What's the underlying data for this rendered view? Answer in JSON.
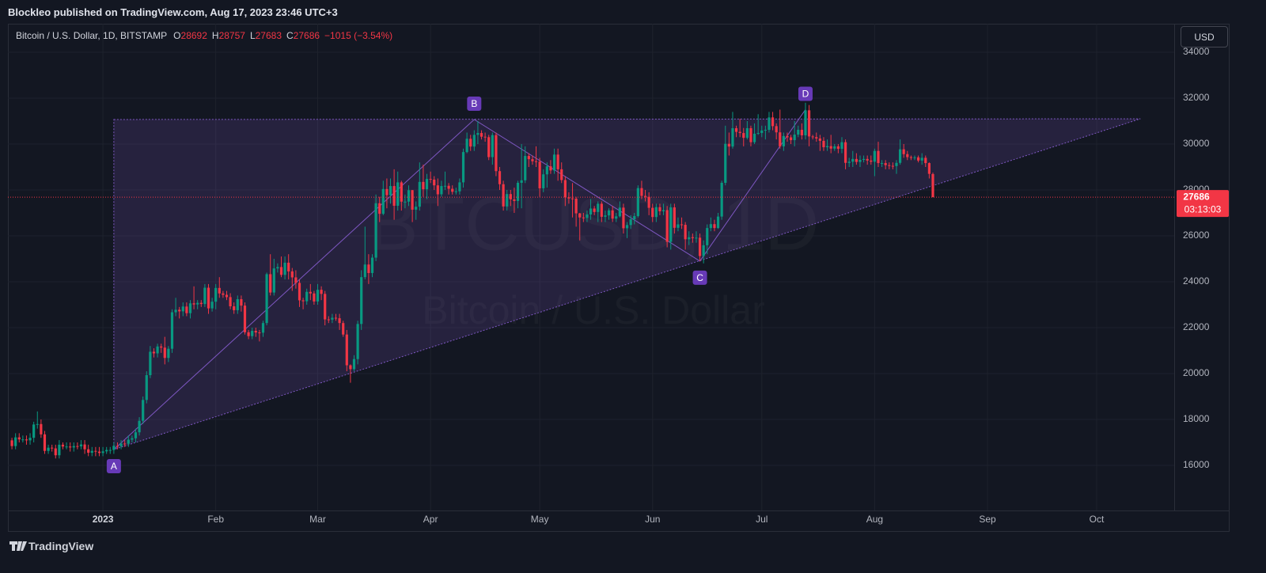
{
  "header": {
    "publisher": "Blockleo published on TradingView.com, Aug 17, 2023 23:46 UTC+3"
  },
  "toolbar": {
    "currency": "USD"
  },
  "footer": {
    "brand": "TradingView"
  },
  "chart_data": {
    "type": "candlestick",
    "title": "Bitcoin / U.S. Dollar, 1D, BITSTAMP",
    "ohlc_prefixes": [
      "O",
      "H",
      "L",
      "C"
    ],
    "change": "−1015 (−3.54%)",
    "countdown": "03:13:03",
    "watermark": [
      "BTCUSD, 1D",
      "Bitcoin / U.S. Dollar"
    ],
    "up_color": "#089981",
    "down_color": "#f23645",
    "pattern_color": "#7e57c2",
    "grid": true,
    "xlim": [
      -26.1,
      294.3
    ],
    "xticks": [
      {
        "value": 0,
        "label": "2023"
      },
      {
        "value": 31,
        "label": "Feb"
      },
      {
        "value": 59,
        "label": "Mar"
      },
      {
        "value": 90,
        "label": "Apr"
      },
      {
        "value": 120,
        "label": "May"
      },
      {
        "value": 151,
        "label": "Jun"
      },
      {
        "value": 181,
        "label": "Jul"
      },
      {
        "value": 212,
        "label": "Aug"
      },
      {
        "value": 243,
        "label": "Sep"
      },
      {
        "value": 273,
        "label": "Oct"
      }
    ],
    "ylim": [
      14034,
      35241
    ],
    "yticks": [
      16000,
      18000,
      20000,
      22000,
      24000,
      26000,
      28000,
      30000,
      32000,
      34000
    ],
    "x": [
      -25,
      -24,
      -23,
      -22,
      -21,
      -20,
      -19,
      -18,
      -17,
      -16,
      -15,
      -14,
      -13,
      -12,
      -11,
      -10,
      -9,
      -8,
      -7,
      -6,
      -5,
      -4,
      -3,
      -2,
      -1,
      0,
      1,
      2,
      3,
      4,
      5,
      6,
      7,
      8,
      9,
      10,
      11,
      12,
      13,
      14,
      15,
      16,
      17,
      18,
      19,
      20,
      21,
      22,
      23,
      24,
      25,
      26,
      27,
      28,
      29,
      30,
      31,
      32,
      33,
      34,
      35,
      36,
      37,
      38,
      39,
      40,
      41,
      42,
      43,
      44,
      45,
      46,
      47,
      48,
      49,
      50,
      51,
      52,
      53,
      54,
      55,
      56,
      57,
      58,
      59,
      60,
      61,
      62,
      63,
      64,
      65,
      66,
      67,
      68,
      69,
      70,
      71,
      72,
      73,
      74,
      75,
      76,
      77,
      78,
      79,
      80,
      81,
      82,
      83,
      84,
      85,
      86,
      87,
      88,
      89,
      90,
      91,
      92,
      93,
      94,
      95,
      96,
      97,
      98,
      99,
      100,
      101,
      102,
      103,
      104,
      105,
      106,
      107,
      108,
      109,
      110,
      111,
      112,
      113,
      114,
      115,
      116,
      117,
      118,
      119,
      120,
      121,
      122,
      123,
      124,
      125,
      126,
      127,
      128,
      129,
      130,
      131,
      132,
      133,
      134,
      135,
      136,
      137,
      138,
      139,
      140,
      141,
      142,
      143,
      144,
      145,
      146,
      147,
      148,
      149,
      150,
      151,
      152,
      153,
      154,
      155,
      156,
      157,
      158,
      159,
      160,
      161,
      162,
      163,
      164,
      165,
      166,
      167,
      168,
      169,
      170,
      171,
      172,
      173,
      174,
      175,
      176,
      177,
      178,
      179,
      180,
      181,
      182,
      183,
      184,
      185,
      186,
      187,
      188,
      189,
      190,
      191,
      192,
      193,
      194,
      195,
      196,
      197,
      198,
      199,
      200,
      201,
      202,
      203,
      204,
      205,
      206,
      207,
      208,
      209,
      210,
      211,
      212,
      213,
      214,
      215,
      216,
      217,
      218,
      219,
      220,
      221,
      222,
      223,
      224,
      225,
      226,
      227,
      228
    ],
    "open": [
      17090,
      16840,
      17220,
      17130,
      17130,
      17090,
      17200,
      17780,
      17800,
      17350,
      16630,
      16770,
      16740,
      16440,
      16900,
      16820,
      16820,
      16780,
      16840,
      16830,
      16910,
      16700,
      16550,
      16630,
      16600,
      16540,
      16610,
      16670,
      16670,
      16850,
      16830,
      16950,
      16940,
      17120,
      17180,
      17440,
      17940,
      18850,
      19930,
      20950,
      20880,
      21180,
      21130,
      20680,
      21080,
      22670,
      22780,
      22710,
      22920,
      22630,
      23060,
      23010,
      23080,
      23030,
      23740,
      22840,
      23130,
      23730,
      23490,
      23430,
      23330,
      22930,
      22760,
      23240,
      22960,
      21800,
      21630,
      21860,
      21790,
      21780,
      22200,
      24330,
      23530,
      24580,
      24640,
      24300,
      24830,
      24450,
      24190,
      23950,
      23190,
      23150,
      23560,
      23490,
      23140,
      23650,
      23470,
      22360,
      22350,
      22430,
      22410,
      22200,
      21700,
      20360,
      20190,
      20630,
      22160,
      24200,
      24750,
      24380,
      25050,
      27420,
      26960,
      28040,
      27770,
      28170,
      27310,
      28330,
      27490,
      27490,
      27990,
      27140,
      27270,
      28350,
      28030,
      28480,
      28450,
      28200,
      27810,
      28170,
      28180,
      28050,
      27920,
      27940,
      28330,
      29650,
      30230,
      29890,
      30400,
      30480,
      30320,
      30300,
      29430,
      30390,
      28820,
      28250,
      27280,
      27820,
      27590,
      27520,
      28310,
      28420,
      29480,
      29340,
      29250,
      29230,
      28070,
      28680,
      29030,
      28850,
      29540,
      28900,
      28430,
      27680,
      27630,
      27620,
      26980,
      26800,
      26780,
      26930,
      27190,
      27040,
      27400,
      26830,
      26890,
      27110,
      26750,
      26850,
      27230,
      26330,
      26470,
      26720,
      26860,
      28080,
      27740,
      27700,
      27220,
      26820,
      27250,
      27070,
      27120,
      25740,
      27240,
      26350,
      26500,
      26480,
      25850,
      25940,
      25900,
      25920,
      25120,
      25590,
      26340,
      26510,
      26340,
      26840,
      28310,
      30010,
      29890,
      30690,
      30530,
      30480,
      30270,
      30690,
      30080,
      30450,
      30480,
      30590,
      30620,
      31160,
      30780,
      30510,
      29900,
      30350,
      30290,
      30170,
      30410,
      30620,
      30380,
      31470,
      30330,
      30300,
      30240,
      30140,
      29860,
      29910,
      29800,
      29900,
      29790,
      30080,
      29180,
      29230,
      29350,
      29220,
      29310,
      29350,
      29280,
      29230,
      29700,
      29170,
      29170,
      29080,
      29050,
      29040,
      29180,
      29770,
      29560,
      29430,
      29400,
      29420,
      29280,
      29400,
      29170,
      28692
    ],
    "high": [
      17200,
      17400,
      17400,
      17300,
      17300,
      17400,
      17900,
      18350,
      18000,
      17500,
      16900,
      16900,
      16900,
      17100,
      17000,
      17000,
      17000,
      17000,
      17000,
      17100,
      17100,
      16900,
      16800,
      16800,
      16800,
      16800,
      16800,
      16800,
      17000,
      17000,
      17100,
      17100,
      17300,
      17300,
      17600,
      18100,
      19000,
      20100,
      21200,
      21100,
      21300,
      21300,
      21600,
      21200,
      22800,
      23300,
      22900,
      23100,
      23100,
      23200,
      23800,
      23200,
      23200,
      23900,
      23900,
      23300,
      23900,
      24200,
      23600,
      23600,
      23500,
      23100,
      23400,
      23400,
      23100,
      21900,
      22000,
      22000,
      21900,
      22300,
      24400,
      25200,
      25000,
      24800,
      25100,
      25100,
      25200,
      24600,
      24500,
      24100,
      23300,
      23700,
      23900,
      23600,
      23900,
      23800,
      23600,
      22500,
      22600,
      22600,
      22600,
      22300,
      21900,
      20400,
      20800,
      22300,
      24500,
      26400,
      25200,
      25200,
      27800,
      27700,
      28400,
      28500,
      28500,
      28900,
      28800,
      28400,
      27800,
      28200,
      28000,
      27500,
      29200,
      29100,
      28700,
      28800,
      28600,
      28500,
      28400,
      28800,
      28300,
      28200,
      28100,
      28500,
      29800,
      30500,
      30400,
      30600,
      31000,
      30600,
      30500,
      30400,
      30500,
      30500,
      29000,
      28400,
      28000,
      28000,
      28100,
      28400,
      30000,
      29900,
      29600,
      29500,
      29900,
      29400,
      28900,
      29200,
      29300,
      29800,
      29800,
      29200,
      28600,
      27900,
      28300,
      27700,
      27000,
      27000,
      27100,
      27600,
      27300,
      27500,
      27500,
      27100,
      27200,
      27300,
      27000,
      27500,
      27400,
      26600,
      26900,
      27000,
      28200,
      28400,
      28000,
      27900,
      27400,
      27400,
      27400,
      27400,
      27300,
      27400,
      27400,
      26800,
      26800,
      26600,
      26200,
      26100,
      26200,
      26100,
      25800,
      26500,
      26800,
      26700,
      27000,
      28400,
      30800,
      30500,
      31400,
      30800,
      31100,
      30700,
      31000,
      30800,
      30900,
      31300,
      30800,
      30800,
      31400,
      31400,
      30900,
      31500,
      30500,
      30500,
      30400,
      31000,
      30800,
      30900,
      31800,
      31700,
      30400,
      30500,
      30400,
      30300,
      30200,
      30400,
      30000,
      30000,
      30300,
      30200,
      29400,
      29700,
      29600,
      29500,
      29500,
      29500,
      29500,
      29800,
      30100,
      29300,
      29300,
      29200,
      29200,
      29300,
      30200,
      30000,
      29700,
      29500,
      29500,
      29500,
      29600,
      29500,
      29200,
      28757
    ],
    "low": [
      16700,
      16700,
      17000,
      17000,
      16900,
      16900,
      17000,
      17600,
      17200,
      16500,
      16500,
      16600,
      16300,
      16300,
      16700,
      16700,
      16600,
      16600,
      16700,
      16700,
      16500,
      16400,
      16400,
      16400,
      16400,
      16400,
      16500,
      16500,
      16500,
      16700,
      16700,
      16800,
      16800,
      17000,
      17000,
      17300,
      17800,
      18700,
      19800,
      20700,
      20700,
      20900,
      20400,
      20500,
      20900,
      22500,
      22400,
      22500,
      22500,
      22400,
      22800,
      22800,
      22900,
      22900,
      22600,
      22700,
      22800,
      23300,
      23300,
      23200,
      22800,
      22600,
      22600,
      22700,
      21700,
      21500,
      21500,
      21600,
      21400,
      21600,
      22100,
      23400,
      23400,
      24400,
      24200,
      24100,
      24100,
      23600,
      23700,
      22900,
      22800,
      23000,
      23200,
      23000,
      23000,
      23200,
      22100,
      22200,
      22200,
      22300,
      21900,
      21600,
      20100,
      19600,
      20100,
      20400,
      21900,
      24100,
      23900,
      24200,
      24900,
      26600,
      26900,
      27200,
      27400,
      26700,
      27100,
      27100,
      27200,
      27300,
      26600,
      26700,
      27100,
      27700,
      27600,
      28300,
      28000,
      27300,
      27700,
      28000,
      27800,
      27800,
      27800,
      27800,
      28100,
      29600,
      29700,
      29700,
      30000,
      30200,
      30100,
      29300,
      29100,
      28600,
      28000,
      27100,
      27100,
      27300,
      27000,
      27200,
      27200,
      28300,
      29000,
      29100,
      29000,
      27700,
      27900,
      28100,
      28700,
      28700,
      28400,
      28300,
      27300,
      27400,
      26800,
      26400,
      25800,
      26600,
      26600,
      26700,
      26900,
      26600,
      26600,
      26600,
      26700,
      26600,
      26600,
      26800,
      26100,
      25900,
      26300,
      26500,
      26800,
      27600,
      27500,
      26900,
      26600,
      26600,
      26900,
      26900,
      25500,
      25400,
      26100,
      26200,
      26300,
      25400,
      25600,
      25700,
      25700,
      24900,
      24800,
      25200,
      26200,
      26200,
      26300,
      26700,
      28200,
      29500,
      29800,
      30300,
      30300,
      29900,
      30200,
      29900,
      30000,
      30400,
      30300,
      30200,
      30500,
      30600,
      30200,
      29800,
      29700,
      30100,
      30000,
      29900,
      30300,
      30200,
      30200,
      29900,
      30200,
      30100,
      29700,
      29700,
      29700,
      29600,
      29700,
      29600,
      29600,
      28900,
      29000,
      29000,
      29100,
      29000,
      29200,
      29100,
      29100,
      28600,
      29000,
      29000,
      28900,
      28900,
      28900,
      28700,
      29100,
      29400,
      29300,
      29300,
      29300,
      29200,
      29100,
      29000,
      28500,
      27683
    ],
    "close": [
      16840,
      17220,
      17130,
      17130,
      17090,
      17200,
      17780,
      17800,
      17350,
      16630,
      16770,
      16740,
      16440,
      16900,
      16820,
      16820,
      16780,
      16840,
      16830,
      16910,
      16700,
      16550,
      16630,
      16600,
      16540,
      16610,
      16670,
      16670,
      16850,
      16830,
      16950,
      16940,
      17120,
      17180,
      17440,
      17940,
      18850,
      19930,
      20950,
      20880,
      21180,
      21130,
      20680,
      21080,
      22670,
      22780,
      22710,
      22920,
      22630,
      23060,
      23010,
      23080,
      23030,
      23740,
      22840,
      23130,
      23730,
      23490,
      23430,
      23330,
      22930,
      22760,
      23240,
      22960,
      21800,
      21630,
      21860,
      21790,
      21780,
      22200,
      24330,
      23530,
      24580,
      24640,
      24300,
      24830,
      24450,
      24190,
      23950,
      23190,
      23150,
      23560,
      23490,
      23140,
      23650,
      23470,
      22360,
      22350,
      22430,
      22410,
      22200,
      21700,
      20360,
      20190,
      20630,
      22160,
      24200,
      24750,
      24380,
      25050,
      27420,
      26960,
      28040,
      27770,
      28170,
      27310,
      28330,
      27490,
      27490,
      27990,
      27140,
      27270,
      28350,
      28030,
      28480,
      28450,
      28200,
      27810,
      28170,
      28180,
      28050,
      27920,
      27940,
      28330,
      29650,
      30230,
      29890,
      30400,
      30480,
      30320,
      30300,
      29430,
      30390,
      28820,
      28250,
      27280,
      27820,
      27590,
      27520,
      28310,
      28420,
      29480,
      29340,
      29250,
      29230,
      28070,
      28680,
      29030,
      28850,
      29540,
      28900,
      28430,
      27680,
      27630,
      27620,
      26980,
      26800,
      26780,
      26930,
      27190,
      27040,
      27400,
      26830,
      26890,
      27110,
      26750,
      26850,
      27230,
      26330,
      26470,
      26720,
      26860,
      28080,
      27740,
      27700,
      27220,
      26820,
      27250,
      27070,
      27120,
      25740,
      27240,
      26350,
      26500,
      26480,
      25850,
      25940,
      25900,
      25920,
      25120,
      25590,
      26340,
      26510,
      26340,
      26840,
      28310,
      30010,
      29890,
      30690,
      30530,
      30480,
      30270,
      30690,
      30080,
      30450,
      30480,
      30590,
      30620,
      31160,
      30780,
      30510,
      29900,
      30350,
      30290,
      30170,
      30410,
      30620,
      30380,
      31470,
      30330,
      30300,
      30240,
      30140,
      29860,
      29910,
      29800,
      29900,
      29790,
      30080,
      29180,
      29230,
      29350,
      29220,
      29310,
      29350,
      29280,
      29230,
      29700,
      29170,
      29170,
      29080,
      29050,
      29040,
      29180,
      29770,
      29560,
      29430,
      29400,
      29420,
      29280,
      29400,
      29170,
      28701,
      27686
    ],
    "pattern": {
      "points": [
        {
          "label": "A",
          "x": 3,
          "y": 16690
        },
        {
          "label": "B",
          "x": 102,
          "y": 31070
        },
        {
          "label": "C",
          "x": 164,
          "y": 24900
        },
        {
          "label": "D",
          "x": 193,
          "y": 31500
        }
      ],
      "triangle": [
        {
          "x": 3,
          "y": 31070
        },
        {
          "x": 285,
          "y": 31100
        },
        {
          "x": 3,
          "y": 16690
        }
      ]
    }
  }
}
